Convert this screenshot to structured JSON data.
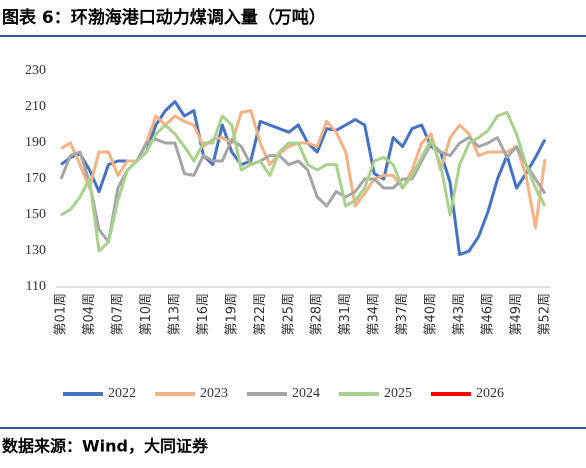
{
  "chart_data": {
    "type": "line",
    "title": "图表 6：环渤海港口动力煤调入量（万吨）",
    "source": "数据来源：Wind，大同证券",
    "categories": [
      "第01周",
      null,
      null,
      "第04周",
      null,
      null,
      "第07周",
      null,
      null,
      "第10周",
      null,
      null,
      "第13周",
      null,
      null,
      "第16周",
      null,
      null,
      "第19周",
      null,
      null,
      "第22周",
      null,
      null,
      "第25周",
      null,
      null,
      "第28周",
      null,
      null,
      "第31周",
      null,
      null,
      "第34周",
      null,
      null,
      "第37周",
      null,
      null,
      "第40周",
      null,
      null,
      "第43周",
      null,
      null,
      "第46周",
      null,
      null,
      "第49周",
      null,
      null,
      "第52周"
    ],
    "series": [
      {
        "name": "2022",
        "color": "#4472c4",
        "values": [
          178,
          182,
          184,
          175,
          163,
          178,
          180,
          180,
          180,
          185,
          200,
          208,
          213,
          205,
          208,
          183,
          178,
          200,
          185,
          178,
          180,
          202,
          200,
          198,
          196,
          200,
          190,
          185,
          198,
          197,
          200,
          203,
          200,
          173,
          170,
          193,
          188,
          198,
          200,
          188,
          185,
          168,
          128,
          130,
          138,
          152,
          170,
          183,
          165,
          173,
          182,
          192
        ]
      },
      {
        "name": "2023",
        "color": "#f4b183",
        "values": [
          187,
          190,
          178,
          165,
          185,
          185,
          172,
          180,
          180,
          190,
          205,
          200,
          205,
          202,
          200,
          188,
          192,
          193,
          190,
          207,
          208,
          190,
          178,
          184,
          188,
          190,
          190,
          188,
          202,
          196,
          185,
          155,
          162,
          170,
          172,
          172,
          165,
          175,
          190,
          195,
          175,
          193,
          200,
          195,
          183,
          185,
          185,
          185,
          188,
          172,
          143,
          181
        ]
      },
      {
        "name": "2024",
        "color": "#a5a5a5",
        "values": [
          170,
          183,
          185,
          168,
          142,
          135,
          165,
          175,
          180,
          190,
          192,
          190,
          190,
          173,
          172,
          183,
          180,
          180,
          192,
          188,
          178,
          180,
          183,
          183,
          178,
          180,
          175,
          160,
          155,
          163,
          160,
          163,
          170,
          170,
          165,
          165,
          170,
          170,
          180,
          190,
          185,
          183,
          190,
          193,
          188,
          190,
          193,
          182,
          188,
          178,
          170,
          162
        ]
      },
      {
        "name": "2025",
        "color": "#a9d18e",
        "values": [
          150,
          153,
          160,
          170,
          130,
          135,
          158,
          175,
          180,
          185,
          195,
          200,
          195,
          188,
          180,
          190,
          190,
          205,
          200,
          175,
          178,
          180,
          172,
          185,
          190,
          190,
          178,
          175,
          178,
          178,
          155,
          158,
          165,
          180,
          182,
          178,
          165,
          172,
          182,
          192,
          178,
          150,
          178,
          190,
          193,
          197,
          205,
          207,
          195,
          178,
          165,
          155
        ]
      },
      {
        "name": "2026",
        "color": "#ff0000",
        "values": [
          null,
          null,
          null,
          null,
          null,
          null,
          null,
          null,
          null,
          null,
          null,
          null,
          null,
          null,
          null,
          null,
          null,
          null,
          null,
          null,
          null,
          null,
          null,
          null,
          null,
          null,
          null,
          null,
          null,
          null,
          null,
          null,
          null,
          null,
          null,
          null,
          null,
          null,
          null,
          null,
          null,
          null,
          null,
          null,
          null,
          null,
          null,
          null,
          null,
          null,
          null,
          null
        ]
      }
    ],
    "ylim": [
      110,
      230
    ],
    "yticks": [
      110,
      130,
      150,
      170,
      190,
      210,
      230
    ],
    "grid": false
  }
}
